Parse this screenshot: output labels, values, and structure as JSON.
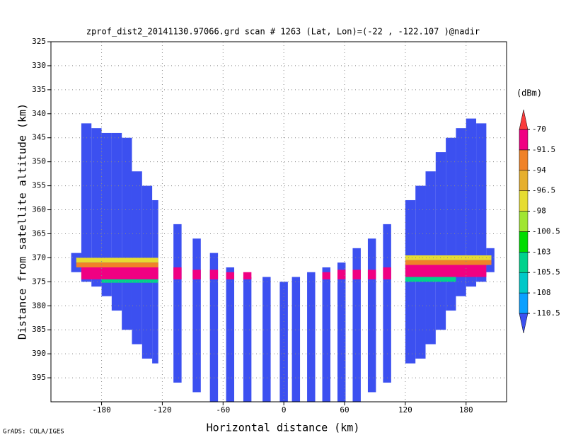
{
  "chart_data": {
    "type": "field",
    "title": "zprof_dist2_20141130.97066.grd   scan # 1263  (Lat, Lon)=(-22 , -122.107 )@nadir",
    "x_label": "Horizontal distance (km)",
    "y_label": "Distance from satellite altitude (km)",
    "colorbar_unit": "(dBm)",
    "footer": "GrADS: COLA/IGES",
    "xlim": [
      -230,
      220
    ],
    "xticks": [
      -180,
      -120,
      -60,
      0,
      60,
      120,
      180
    ],
    "ylim": [
      325,
      400
    ],
    "yticks": [
      325,
      330,
      335,
      340,
      345,
      350,
      355,
      360,
      365,
      370,
      375,
      380,
      385,
      390,
      395
    ],
    "y_inverted": true,
    "grid": true,
    "levels": [
      -110.5,
      -108,
      -105.5,
      -103,
      -100.5,
      -98,
      -96.5,
      -94,
      -91.5,
      -70
    ],
    "colors": [
      "#3c50f0",
      "#0aa0ff",
      "#00c8c8",
      "#00d28c",
      "#00dc00",
      "#a0e632",
      "#e6dc32",
      "#e6af2d",
      "#f08228",
      "#f00082",
      "#fa3c3c"
    ],
    "cells": [
      {
        "x": [
          -210,
          -200
        ],
        "y": [
          369,
          373
        ],
        "value": -112
      },
      {
        "x": [
          -200,
          -190
        ],
        "y": [
          342,
          375
        ],
        "value": -112
      },
      {
        "x": [
          -190,
          -180
        ],
        "y": [
          343,
          376
        ],
        "value": -112
      },
      {
        "x": [
          -180,
          -170
        ],
        "y": [
          344,
          378
        ],
        "value": -112
      },
      {
        "x": [
          -170,
          -160
        ],
        "y": [
          344,
          381
        ],
        "value": -112
      },
      {
        "x": [
          -160,
          -150
        ],
        "y": [
          345,
          385
        ],
        "value": -112
      },
      {
        "x": [
          -150,
          -140
        ],
        "y": [
          352,
          388
        ],
        "value": -112
      },
      {
        "x": [
          -140,
          -130
        ],
        "y": [
          355,
          391
        ],
        "value": -112
      },
      {
        "x": [
          -130,
          -124
        ],
        "y": [
          358,
          392
        ],
        "value": -112
      },
      {
        "x": [
          -109,
          -101
        ],
        "y": [
          363,
          396
        ],
        "value": -112
      },
      {
        "x": [
          -90,
          -82
        ],
        "y": [
          366,
          398
        ],
        "value": -112
      },
      {
        "x": [
          -73,
          -65
        ],
        "y": [
          369,
          400
        ],
        "value": -112
      },
      {
        "x": [
          -57,
          -49
        ],
        "y": [
          372,
          400
        ],
        "value": -112
      },
      {
        "x": [
          -40,
          -32
        ],
        "y": [
          374,
          400
        ],
        "value": -112
      },
      {
        "x": [
          -21,
          -13
        ],
        "y": [
          374,
          400
        ],
        "value": -112
      },
      {
        "x": [
          -4,
          4
        ],
        "y": [
          375,
          400
        ],
        "value": -112
      },
      {
        "x": [
          8,
          16
        ],
        "y": [
          374,
          400
        ],
        "value": -112
      },
      {
        "x": [
          23,
          31
        ],
        "y": [
          373,
          400
        ],
        "value": -112
      },
      {
        "x": [
          38,
          46
        ],
        "y": [
          372,
          400
        ],
        "value": -112
      },
      {
        "x": [
          53,
          61
        ],
        "y": [
          371,
          400
        ],
        "value": -112
      },
      {
        "x": [
          68,
          76
        ],
        "y": [
          368,
          400
        ],
        "value": -112
      },
      {
        "x": [
          83,
          91
        ],
        "y": [
          366,
          398
        ],
        "value": -112
      },
      {
        "x": [
          98,
          106
        ],
        "y": [
          363,
          396
        ],
        "value": -112
      },
      {
        "x": [
          120,
          130
        ],
        "y": [
          358,
          392
        ],
        "value": -112
      },
      {
        "x": [
          130,
          140
        ],
        "y": [
          355,
          391
        ],
        "value": -112
      },
      {
        "x": [
          140,
          150
        ],
        "y": [
          352,
          388
        ],
        "value": -112
      },
      {
        "x": [
          150,
          160
        ],
        "y": [
          348,
          385
        ],
        "value": -112
      },
      {
        "x": [
          160,
          170
        ],
        "y": [
          345,
          381
        ],
        "value": -112
      },
      {
        "x": [
          170,
          180
        ],
        "y": [
          343,
          378
        ],
        "value": -112
      },
      {
        "x": [
          180,
          190
        ],
        "y": [
          341,
          376
        ],
        "value": -112
      },
      {
        "x": [
          190,
          200
        ],
        "y": [
          342,
          375
        ],
        "value": -112
      },
      {
        "x": [
          200,
          208
        ],
        "y": [
          368,
          373
        ],
        "value": -112
      },
      {
        "x": [
          -205,
          -124
        ],
        "y": [
          370,
          371
        ],
        "value": -97
      },
      {
        "x": [
          -205,
          -124
        ],
        "y": [
          371,
          372
        ],
        "value": -93
      },
      {
        "x": [
          -200,
          -124
        ],
        "y": [
          372,
          374.5
        ],
        "value": -85
      },
      {
        "x": [
          -180,
          -124
        ],
        "y": [
          374.5,
          375.2
        ],
        "value": -104
      },
      {
        "x": [
          120,
          205
        ],
        "y": [
          369.5,
          370.5
        ],
        "value": -97
      },
      {
        "x": [
          120,
          205
        ],
        "y": [
          370.5,
          371.5
        ],
        "value": -93
      },
      {
        "x": [
          120,
          200
        ],
        "y": [
          371.5,
          374
        ],
        "value": -85
      },
      {
        "x": [
          120,
          170
        ],
        "y": [
          374,
          375
        ],
        "value": -104
      },
      {
        "x": [
          -109,
          -101
        ],
        "y": [
          372,
          374.5
        ],
        "value": -85
      },
      {
        "x": [
          -90,
          -82
        ],
        "y": [
          372.5,
          374.5
        ],
        "value": -85
      },
      {
        "x": [
          -73,
          -65
        ],
        "y": [
          372.5,
          374.5
        ],
        "value": -85
      },
      {
        "x": [
          -57,
          -49
        ],
        "y": [
          373,
          374.5
        ],
        "value": -85
      },
      {
        "x": [
          -40,
          -32
        ],
        "y": [
          373,
          374.5
        ],
        "value": -75
      },
      {
        "x": [
          38,
          46
        ],
        "y": [
          373,
          374.5
        ],
        "value": -75
      },
      {
        "x": [
          53,
          61
        ],
        "y": [
          372.5,
          374.5
        ],
        "value": -85
      },
      {
        "x": [
          68,
          76
        ],
        "y": [
          372.5,
          374.5
        ],
        "value": -85
      },
      {
        "x": [
          83,
          91
        ],
        "y": [
          372.5,
          374.5
        ],
        "value": -85
      },
      {
        "x": [
          98,
          106
        ],
        "y": [
          372,
          374.5
        ],
        "value": -85
      }
    ]
  }
}
